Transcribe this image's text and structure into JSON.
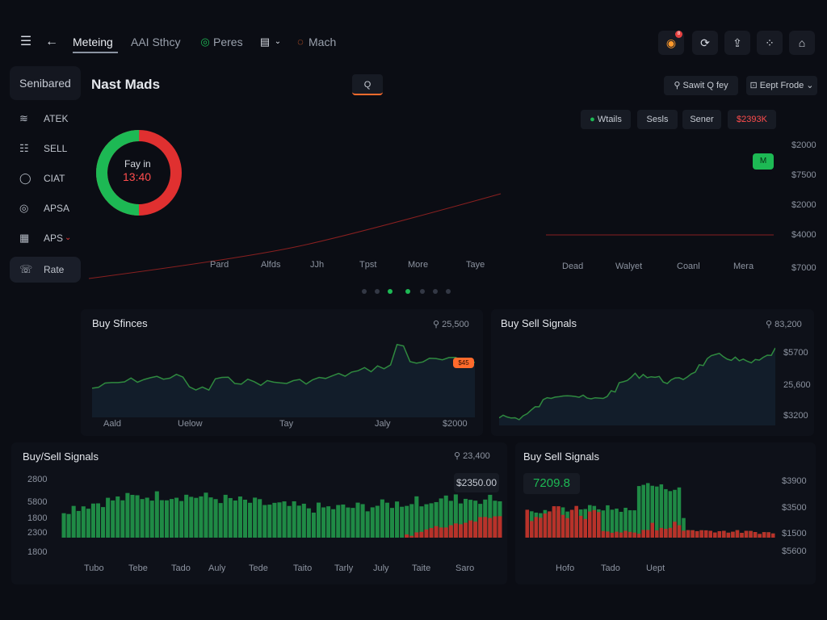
{
  "topbar": {
    "tabs": [
      "Meteing",
      "AAI Sthcy",
      "Peres",
      "Mach"
    ],
    "tab_icons": [
      "menu-icon",
      "back-arrow-icon",
      "ring-icon",
      "calendar-icon",
      "orange-ring-icon"
    ],
    "notification_count": "8"
  },
  "sidebar": {
    "title": "Senibared",
    "items": [
      {
        "label": "ATEK",
        "icon": "layers-icon"
      },
      {
        "label": "SELL",
        "icon": "list-icon"
      },
      {
        "label": "CIAT",
        "icon": "chat-icon"
      },
      {
        "label": "APSA",
        "icon": "target-icon"
      },
      {
        "label": "APS",
        "icon": "grid-icon"
      },
      {
        "label": "Rate",
        "icon": "rate-icon"
      }
    ]
  },
  "main": {
    "title": "Nast Mads",
    "search_btn": "Q",
    "search_label": "Sawit Q fey",
    "export_label": "Eept Frode",
    "legend": {
      "green": "Wtails",
      "sell": "Sesls",
      "other": "Sener",
      "price": "$2393K"
    },
    "donut": {
      "label": "Fay in",
      "value": "13:40",
      "fraction": 0.5
    },
    "price_tag": "M",
    "left_x_labels": [
      "Pard",
      "Alfds",
      "JJh",
      "Tpst",
      "More",
      "Taye"
    ],
    "right_x_labels": [
      "Dead",
      "Walyet",
      "Coanl",
      "Mera"
    ],
    "y_labels": [
      "$2000",
      "$7500",
      "$2000",
      "$4000",
      "$7000"
    ]
  },
  "buy_panel": {
    "title": "Buy Sfinces",
    "value": "25,500",
    "x_labels": [
      "Aald",
      "Uelow",
      "Tay",
      "Jaly",
      "$2000"
    ],
    "tag": "$45"
  },
  "sell_panel": {
    "title": "Buy Sell Signals",
    "value": "83,200",
    "y_labels": [
      "$5700",
      "25,600",
      "$3200"
    ]
  },
  "bottom_left": {
    "title": "Buy/Sell Signals",
    "value": "23,400",
    "box_value": "$2350.00",
    "y_labels": [
      "2800",
      "5800",
      "1800",
      "2300",
      "1800"
    ],
    "x_labels": [
      "Tubo",
      "Tebe",
      "Tado",
      "Auly",
      "Tede",
      "Taito",
      "Tarly",
      "July",
      "Taite",
      "Saro"
    ]
  },
  "bottom_right": {
    "title": "Buy Sell Signals",
    "box_value": "7209.8",
    "y_labels": [
      "$3900",
      "$3500",
      "$1500",
      "$5600"
    ],
    "x_labels": [
      "Hofo",
      "Tado",
      "Uept"
    ]
  },
  "colors": {
    "up": "#1db954",
    "down": "#e53935",
    "accent": "#ff6b2c"
  }
}
